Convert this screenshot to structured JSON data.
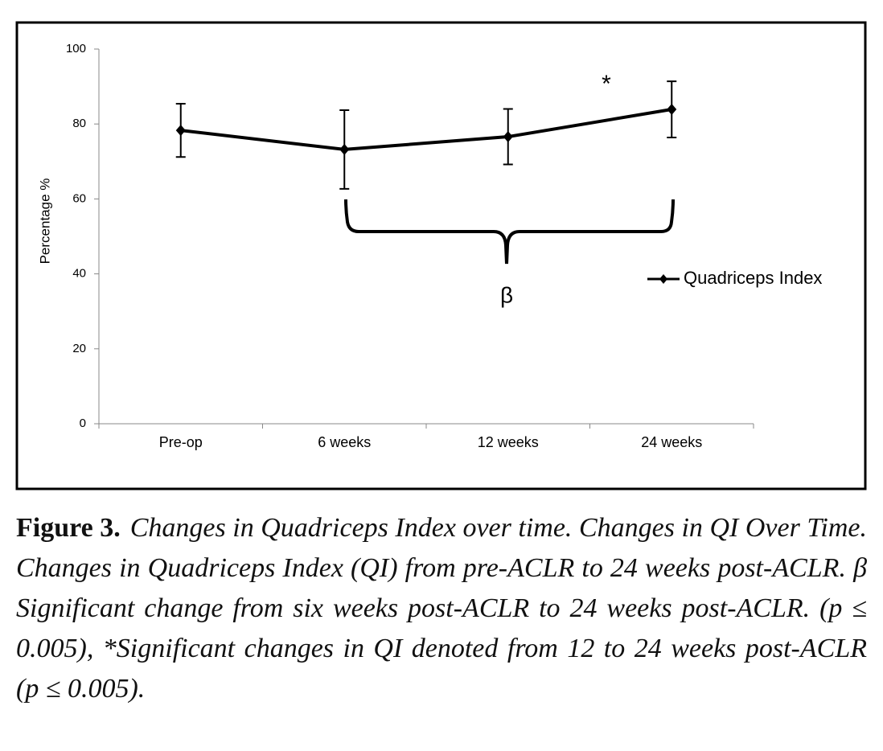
{
  "chart_data": {
    "type": "line",
    "y_label": "Percentage %",
    "categories": [
      "Pre-op",
      "6 weeks",
      "12 weeks",
      "24 weeks"
    ],
    "series": [
      {
        "name": "Quadriceps Index",
        "color": "#000000",
        "values": [
          78.3,
          73.2,
          76.6,
          83.9
        ],
        "errors": [
          7.1,
          10.5,
          7.4,
          7.5
        ]
      }
    ],
    "ylim": [
      0,
      100
    ],
    "yticks": [
      0,
      20,
      40,
      60,
      80,
      100
    ],
    "legend": "right",
    "annotations": [
      "*",
      "β"
    ],
    "caption_label": "Figure 3.",
    "caption": "Changes in Quadriceps Index over time. Changes in QI Over Time. Changes in Quadriceps Index (QI) from pre-ACLR to 24 weeks post-ACLR. β Significant change from six weeks post-ACLR to 24 weeks post-ACLR. (p ≤ 0.005), *Significant changes in QI denoted from 12 to 24 weeks post-ACLR (p ≤ 0.005)."
  }
}
